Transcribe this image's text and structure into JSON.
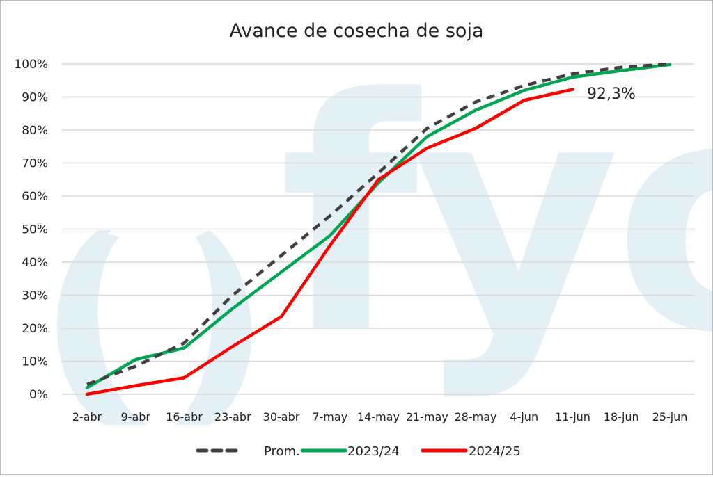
{
  "chart_data": {
    "type": "line",
    "title": "Avance de cosecha de soja",
    "xlabel": "",
    "ylabel": "",
    "ylim": [
      0,
      100
    ],
    "y_ticks": [
      "0%",
      "10%",
      "20%",
      "30%",
      "40%",
      "50%",
      "60%",
      "70%",
      "80%",
      "90%",
      "100%"
    ],
    "categories": [
      "2-abr",
      "9-abr",
      "16-abr",
      "23-abr",
      "30-abr",
      "7-may",
      "14-may",
      "21-may",
      "28-may",
      "4-jun",
      "11-jun",
      "18-jun",
      "25-jun"
    ],
    "series": [
      {
        "name": "Prom.",
        "color": "#404040",
        "style": "dashed",
        "values": [
          3,
          8.5,
          15.5,
          30,
          42,
          54,
          67,
          80.5,
          88.5,
          93.5,
          97,
          99,
          100
        ]
      },
      {
        "name": "2023/24",
        "color": "#00a651",
        "style": "solid",
        "values": [
          2,
          10.5,
          14,
          26,
          37,
          48,
          64,
          78,
          86,
          92,
          96,
          98,
          99.8
        ]
      },
      {
        "name": "2024/25",
        "color": "#ff0000",
        "style": "solid",
        "values": [
          0,
          2.6,
          5,
          14.5,
          23.5,
          45,
          65,
          74.5,
          80.5,
          89,
          92.3
        ]
      }
    ],
    "annotations": [
      {
        "text": "92,3%",
        "series": "2024/25",
        "category": "11-jun"
      }
    ],
    "grid": true,
    "legend_position": "bottom",
    "watermark": "fyo"
  }
}
